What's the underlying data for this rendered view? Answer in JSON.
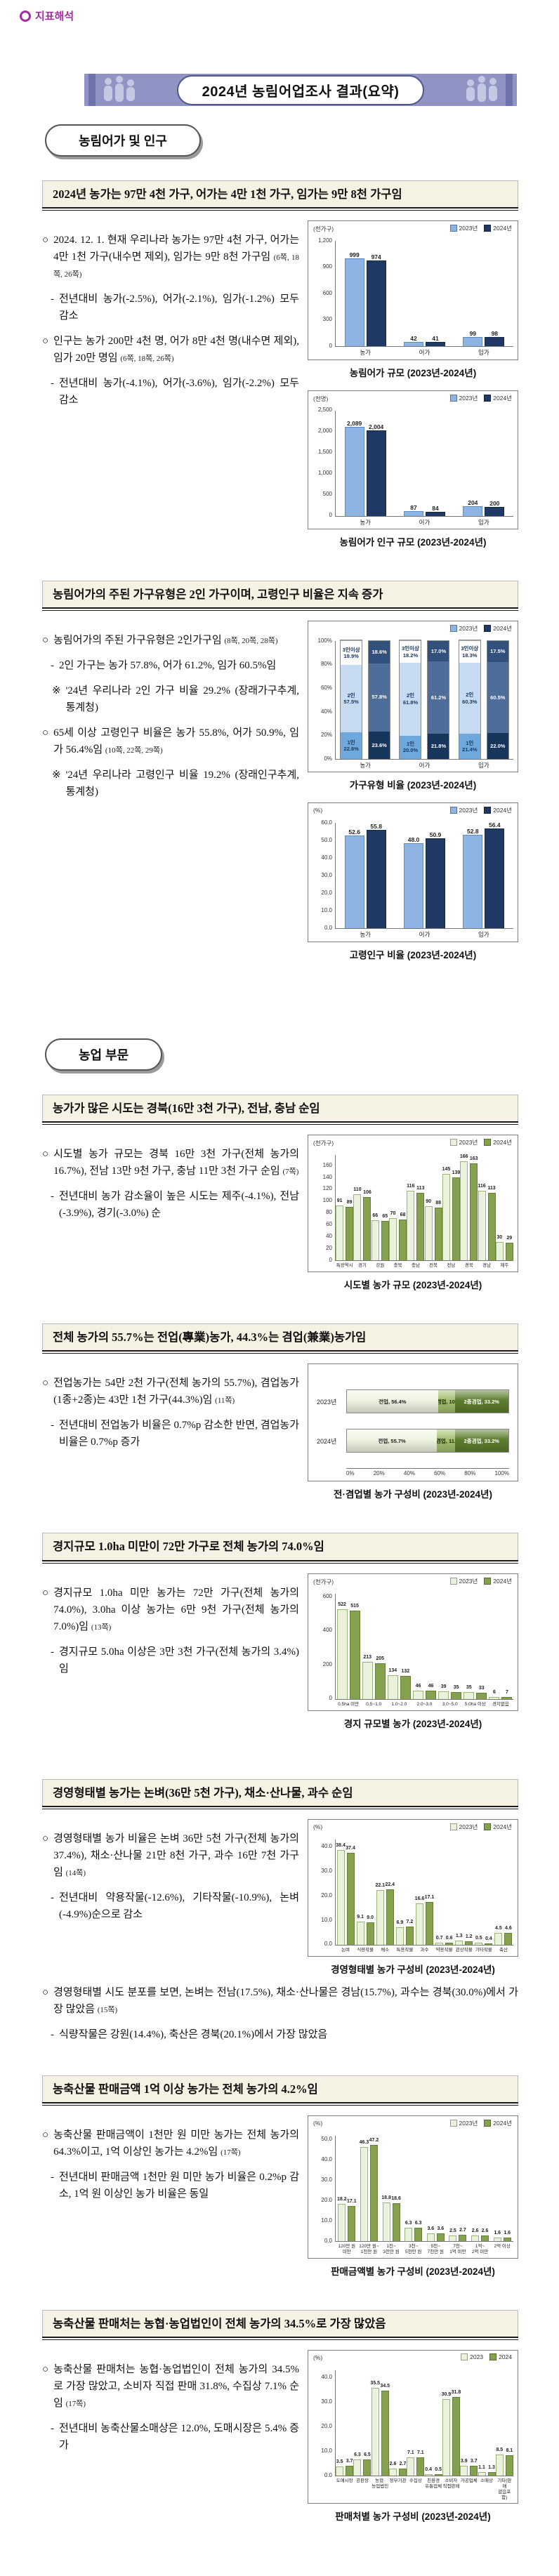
{
  "page": {
    "top_label": "지표해석",
    "banner_title": "2024년 농림어업조사 결과(요약)",
    "accent_purple": "#A22DA0",
    "banner_bg": "#8F94C4"
  },
  "groups": [
    {
      "label": "농림어가 및 인구"
    },
    {
      "label": "농업 부문"
    }
  ],
  "sections": [
    {
      "title": "2024년 농가는 97만 4천 가구, 어가는 4만 1천 가구, 임가는 9만 8천 가구임",
      "paragraphs": [
        {
          "marker": "○",
          "text": "2024. 12. 1. 현재 우리나라 농가는 97만 4천 가구, 어가는 4만 1천 가구(내수면 제외), 임가는 9만 8천 가구임",
          "ref": "(6쪽, 18쪽, 26쪽)"
        },
        {
          "marker": "-",
          "text": "전년대비 농가(-2.5%), 어가(-2.1%), 임가(-1.2%) 모두 감소"
        },
        {
          "marker": "○",
          "text": "인구는 농가 200만 4천 명, 어가 8만 4천 명(내수면 제외), 임가 20만 명임",
          "ref": "(6쪽, 18쪽, 26쪽)"
        },
        {
          "marker": "-",
          "text": "전년대비 농가(-4.1%), 어가(-3.6%), 임가(-2.2%) 모두 감소"
        }
      ]
    },
    {
      "title": "농림어가의 주된 가구유형은 2인 가구이며, 고령인구 비율은 지속 증가",
      "paragraphs": [
        {
          "marker": "○",
          "text": "농림어가의 주된 가구유형은 2인가구임",
          "ref": "(8쪽, 20쪽, 28쪽)"
        },
        {
          "marker": "-",
          "text": "2인 가구는 농가 57.8%, 어가 61.2%, 임가 60.5%임"
        },
        {
          "marker": "※",
          "text": "'24년 우리나라 2인 가구 비율 29.2% (장래가구추계, 통계청)"
        },
        {
          "marker": "○",
          "text": "65세 이상 고령인구 비율은 농가 55.8%, 어가 50.9%, 임가 56.4%임",
          "ref": "(10쪽, 22쪽, 29쪽)"
        },
        {
          "marker": "※",
          "text": "'24년 우리나라 고령인구 비율 19.2% (장래인구추계, 통계청)"
        }
      ]
    },
    {
      "title": "농가가 많은 시도는 경북(16만 3천 가구), 전남, 충남 순임",
      "paragraphs": [
        {
          "marker": "○",
          "text": "시도별 농가 규모는 경북 16만 3천 가구(전체 농가의 16.7%), 전남 13만 9천 가구, 충남 11만 3천 가구 순임",
          "ref": "(7쪽)"
        },
        {
          "marker": "-",
          "text": "전년대비 농가 감소율이 높은 시도는 제주(-4.1%), 전남(-3.9%), 경기(-3.0%) 순"
        }
      ]
    },
    {
      "title": "전체 농가의 55.7%는 전업(專業)농가, 44.3%는 겸업(兼業)농가임",
      "paragraphs": [
        {
          "marker": "○",
          "text": "전업농가는 54만 2천 가구(전체 농가의 55.7%), 겸업농가(1종+2종)는 43만 1천 가구(44.3%)임",
          "ref": "(11쪽)"
        },
        {
          "marker": "-",
          "text": "전년대비 전업농가 비율은 0.7%p 감소한 반면, 겸업농가 비율은 0.7%p 증가"
        }
      ]
    },
    {
      "title": "경지규모 1.0ha 미만이 72만 가구로 전체 농가의 74.0%임",
      "paragraphs": [
        {
          "marker": "○",
          "text": "경지규모 1.0ha 미만 농가는 72만 가구(전체 농가의 74.0%), 3.0ha 이상 농가는 6만 9천 가구(전체 농가의 7.0%)임",
          "ref": "(13쪽)"
        },
        {
          "marker": "-",
          "text": "경지규모 5.0ha 이상은 3만 3천 가구(전체 농가의 3.4%)임"
        }
      ]
    },
    {
      "title": "경영형태별 농가는 논벼(36만 5천 가구), 채소·산나물, 과수 순임",
      "paragraphs": [
        {
          "marker": "○",
          "text": "경영형태별 농가 비율은 논벼 36만 5천 가구(전체 농가의 37.4%), 채소·산나물 21만 8천 가구, 과수 16만 7천 가구임",
          "ref": "(14쪽)"
        },
        {
          "marker": "-",
          "text": "전년대비 약용작물(-12.6%), 기타작물(-10.9%), 논벼(-4.9%)순으로 감소"
        }
      ],
      "paragraphs_after": [
        {
          "marker": "○",
          "text": "경영형태별 시도 분포를 보면, 논벼는 전남(17.5%), 채소·산나물은 경남(15.7%), 과수는 경북(30.0%)에서 가장 많았음",
          "ref": "(15쪽)"
        },
        {
          "marker": "-",
          "text": "식량작물은 강원(14.4%), 축산은 경북(20.1%)에서 가장 많았음"
        }
      ]
    },
    {
      "title": "농축산물 판매금액 1억 이상 농가는 전체 농가의 4.2%임",
      "paragraphs": [
        {
          "marker": "○",
          "text": "농축산물 판매금액이 1천만 원 미만 농가는 전체 농가의 64.3%이고, 1억 이상인 농가는 4.2%임",
          "ref": "(17쪽)"
        },
        {
          "marker": "-",
          "text": "전년대비 판매금액 1천만 원 미만 농가 비율은 0.2%p 감소, 1억 원 이상인 농가 비율은 동일"
        }
      ]
    },
    {
      "title": "농축산물 판매처는 농협·농업법인이 전체 농가의 34.5%로 가장 많았음",
      "paragraphs": [
        {
          "marker": "○",
          "text": "농축산물 판매처는 농협·농업법인이 전체 농가의 34.5%로 가장 많았고, 소비자 직접 판매 31.8%, 수집상 7.1% 순임",
          "ref": "(17쪽)"
        },
        {
          "marker": "-",
          "text": "전년대비 농축산물소매상은 12.0%, 도매시장은 5.4% 증가"
        }
      ]
    }
  ],
  "chart_data": [
    {
      "type": "bar",
      "caption": "농림어가 규모 (2023년-2024년)",
      "unit": "(천가구)",
      "palette": "blue",
      "categories": [
        "농가",
        "어가",
        "임가"
      ],
      "series": [
        {
          "name": "2023년",
          "values": [
            999,
            42,
            99
          ]
        },
        {
          "name": "2024년",
          "values": [
            974,
            41,
            98
          ]
        }
      ],
      "ylim": [
        0,
        1200
      ],
      "yticks": [
        0,
        300,
        600,
        900,
        1200
      ],
      "legend_pos": "top-right",
      "grid": false
    },
    {
      "type": "bar",
      "caption": "농림어가 인구 규모 (2023년-2024년)",
      "unit": "(천명)",
      "palette": "blue",
      "categories": [
        "농가",
        "어가",
        "임가"
      ],
      "series": [
        {
          "name": "2023년",
          "values": [
            2089,
            87,
            204
          ]
        },
        {
          "name": "2024년",
          "values": [
            2004,
            84,
            200
          ]
        }
      ],
      "ylim": [
        0,
        2500
      ],
      "yticks": [
        0,
        500,
        1000,
        1500,
        2000,
        2500
      ],
      "legend_pos": "top-right",
      "grid": false
    },
    {
      "type": "stacked_bar",
      "caption": "가구유형 비율 (2023년-2024년)",
      "unit": "",
      "palette": "blue",
      "legend": [
        "2023년",
        "2024년"
      ],
      "segments": [
        "1인",
        "2인",
        "3인이상"
      ],
      "categories": [
        "농가",
        "어가",
        "임가"
      ],
      "values_2023": [
        [
          22.6,
          57.5,
          19.9
        ],
        [
          20.0,
          61.8,
          18.2
        ],
        [
          21.4,
          60.3,
          18.3
        ]
      ],
      "values_2024": [
        [
          23.6,
          57.8,
          18.6
        ],
        [
          21.8,
          61.2,
          17.0
        ],
        [
          22.0,
          60.5,
          17.5
        ]
      ],
      "yticks": [
        "0%",
        "20%",
        "40%",
        "60%",
        "80%",
        "100%"
      ],
      "legend_pos": "top-right"
    },
    {
      "type": "bar",
      "caption": "고령인구 비율 (2023년-2024년)",
      "unit": "(%)",
      "palette": "blue",
      "decimals": 1,
      "categories": [
        "농가",
        "어가",
        "임가"
      ],
      "series": [
        {
          "name": "2023년",
          "values": [
            52.6,
            48.0,
            52.8
          ]
        },
        {
          "name": "2024년",
          "values": [
            55.8,
            50.9,
            56.4
          ]
        }
      ],
      "ylim": [
        0,
        60
      ],
      "yticks": [
        0,
        10,
        20,
        30,
        40,
        50,
        60
      ],
      "legend_pos": "top-right",
      "grid": false
    },
    {
      "type": "bar",
      "caption": "시도별 농가 규모 (2023년-2024년)",
      "unit": "(천가구)",
      "palette": "green",
      "categories": [
        "특광역시",
        "경기",
        "강원",
        "충북",
        "충남",
        "전북",
        "전남",
        "경북",
        "경남",
        "제주"
      ],
      "series": [
        {
          "name": "2023년",
          "values": [
            91,
            110,
            66,
            70,
            116,
            90,
            145,
            166,
            116,
            30
          ]
        },
        {
          "name": "2024년",
          "values": [
            89,
            106,
            65,
            68,
            113,
            88,
            139,
            163,
            113,
            29
          ]
        }
      ],
      "ylim": [
        0,
        178
      ],
      "yticks": [
        0,
        20,
        40,
        60,
        80,
        100,
        120,
        140,
        160
      ],
      "legend_pos": "top-right",
      "grid": false
    },
    {
      "type": "hstacked",
      "caption": "전·겸업별 농가 구성비 (2023년-2024년)",
      "palette": "green",
      "rows": [
        {
          "label": "2023년",
          "segments": [
            {
              "name": "전업",
              "value": 56.4
            },
            {
              "name": "1종겸업",
              "value": 10.4
            },
            {
              "name": "2종겸업",
              "value": 33.2
            }
          ]
        },
        {
          "label": "2024년",
          "segments": [
            {
              "name": "전업",
              "value": 55.7
            },
            {
              "name": "1종겸업",
              "value": 11.1
            },
            {
              "name": "2종겸업",
              "value": 33.2
            }
          ]
        }
      ],
      "xticks": [
        "0%",
        "20%",
        "40%",
        "60%",
        "80%",
        "100%"
      ]
    },
    {
      "type": "bar",
      "caption": "경지 규모별 농가 (2023년-2024년)",
      "unit": "(천가구)",
      "palette": "green",
      "categories": [
        "0.5ha 미만",
        "0.5~1.0",
        "1.0~2.0",
        "2.0~3.0",
        "3.0~5.0",
        "5.0ha 이상",
        "경지없음"
      ],
      "series": [
        {
          "name": "2023년",
          "values": [
            522,
            213,
            134,
            46,
            39,
            35,
            6
          ]
        },
        {
          "name": "2024년",
          "values": [
            515,
            205,
            132,
            46,
            35,
            33,
            7
          ]
        }
      ],
      "ylim": [
        0,
        620
      ],
      "yticks": [
        0,
        200,
        400,
        600
      ],
      "legend_pos": "top-right",
      "grid": false
    },
    {
      "type": "bar",
      "caption": "경영형태별 농가 구성비 (2023년-2024년)",
      "unit": "(%)",
      "palette": "green",
      "decimals": 1,
      "categories": [
        "논벼",
        "식량작물",
        "채소",
        "특용작물",
        "과수",
        "약용작물",
        "관상작물",
        "기타작물",
        "축산"
      ],
      "series": [
        {
          "name": "2023년",
          "values": [
            38.4,
            9.1,
            22.1,
            6.9,
            16.6,
            0.7,
            1.3,
            0.5,
            4.5
          ]
        },
        {
          "name": "2024년",
          "values": [
            37.4,
            9.0,
            22.4,
            7.2,
            17.1,
            0.6,
            1.2,
            0.4,
            4.6
          ]
        }
      ],
      "ylim": [
        0,
        43
      ],
      "yticks": [
        0,
        10,
        20,
        30,
        40
      ],
      "legend_pos": "top-right",
      "grid": false
    },
    {
      "type": "bar",
      "caption": "판매금액별 농가 구성비 (2023년-2024년)",
      "unit": "(%)",
      "palette": "green",
      "decimals": 1,
      "categories": [
        "120만 원\n미만",
        "120만 원~\n1천만 원",
        "1천~\n3천만 원",
        "3천~\n5천만 원",
        "5천~\n7천만 원",
        "7천~\n1억 미만",
        "1억~\n2억 미만",
        "2억 이상"
      ],
      "series": [
        {
          "name": "2023년",
          "values": [
            18.2,
            46.3,
            18.8,
            6.3,
            3.6,
            2.5,
            2.6,
            1.6
          ]
        },
        {
          "name": "2024년",
          "values": [
            17.1,
            47.2,
            18.6,
            6.3,
            3.6,
            2.7,
            2.6,
            1.6
          ]
        }
      ],
      "ylim": [
        0,
        52
      ],
      "yticks": [
        0,
        10,
        20,
        30,
        40,
        50
      ],
      "legend_pos": "top-right",
      "grid": false
    },
    {
      "type": "bar",
      "caption": "판매처별 농가 구성비 (2023년-2024년)",
      "unit": "(%)",
      "palette": "green",
      "decimals": 1,
      "categories": [
        "도매시장",
        "공판장",
        "농협·\n농업법인",
        "정부기관",
        "수집상",
        "친환경\n유통업체",
        "소비자\n직접판매",
        "가공업체",
        "소매상",
        "기타(판매\n없음포함)"
      ],
      "series": [
        {
          "name": "2023",
          "values": [
            3.5,
            6.3,
            35.5,
            2.6,
            7.1,
            0.4,
            30.9,
            3.9,
            1.1,
            8.5
          ]
        },
        {
          "name": "2024",
          "values": [
            3.7,
            6.5,
            34.5,
            2.7,
            7.1,
            0.5,
            31.8,
            3.7,
            1.3,
            8.1
          ]
        }
      ],
      "ylim": [
        0,
        43
      ],
      "yticks": [
        0,
        10,
        20,
        30,
        40
      ],
      "legend_pos": "top-right",
      "grid": false
    }
  ]
}
